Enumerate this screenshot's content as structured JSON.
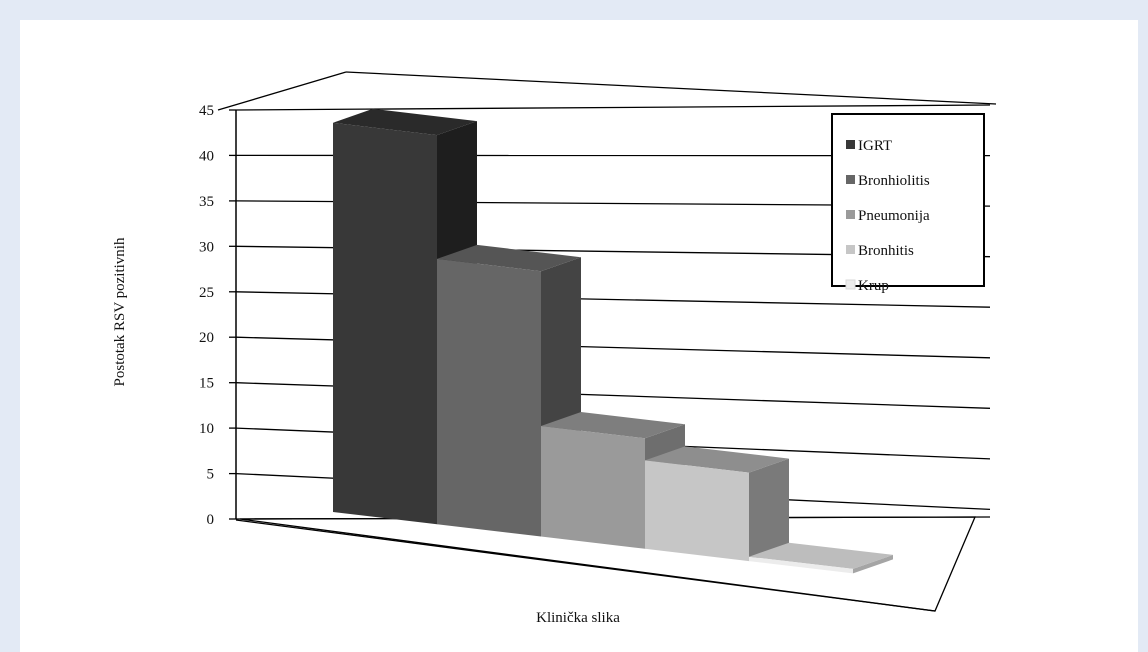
{
  "chart_data": {
    "type": "bar",
    "style": "3d-column",
    "title": "",
    "xlabel": "Klinička slika",
    "ylabel": "Postotak RSV pozitivnih",
    "ylim": [
      0,
      45
    ],
    "yticks": [
      "0",
      "5",
      "10",
      "15",
      "20",
      "25",
      "30",
      "35",
      "40",
      "45"
    ],
    "grid": true,
    "legend_position": "top-right",
    "series": [
      {
        "name": "IGRT",
        "value": 44,
        "front": "#383838",
        "top": "#2a2a2a",
        "side": "#1e1e1e"
      },
      {
        "name": "Bronhiolitis",
        "value": 30,
        "front": "#666666",
        "top": "#555555",
        "side": "#444444"
      },
      {
        "name": "Pneumonija",
        "value": 12.5,
        "front": "#9a9a9a",
        "top": "#7e7e7e",
        "side": "#6e6e6e"
      },
      {
        "name": "Bronhitis",
        "value": 10,
        "front": "#c6c6c6",
        "top": "#8e8e8e",
        "side": "#7a7a7a"
      },
      {
        "name": "Krup",
        "value": 0.5,
        "front": "#ececec",
        "top": "#bdbdbd",
        "side": "#a5a5a5"
      }
    ]
  }
}
